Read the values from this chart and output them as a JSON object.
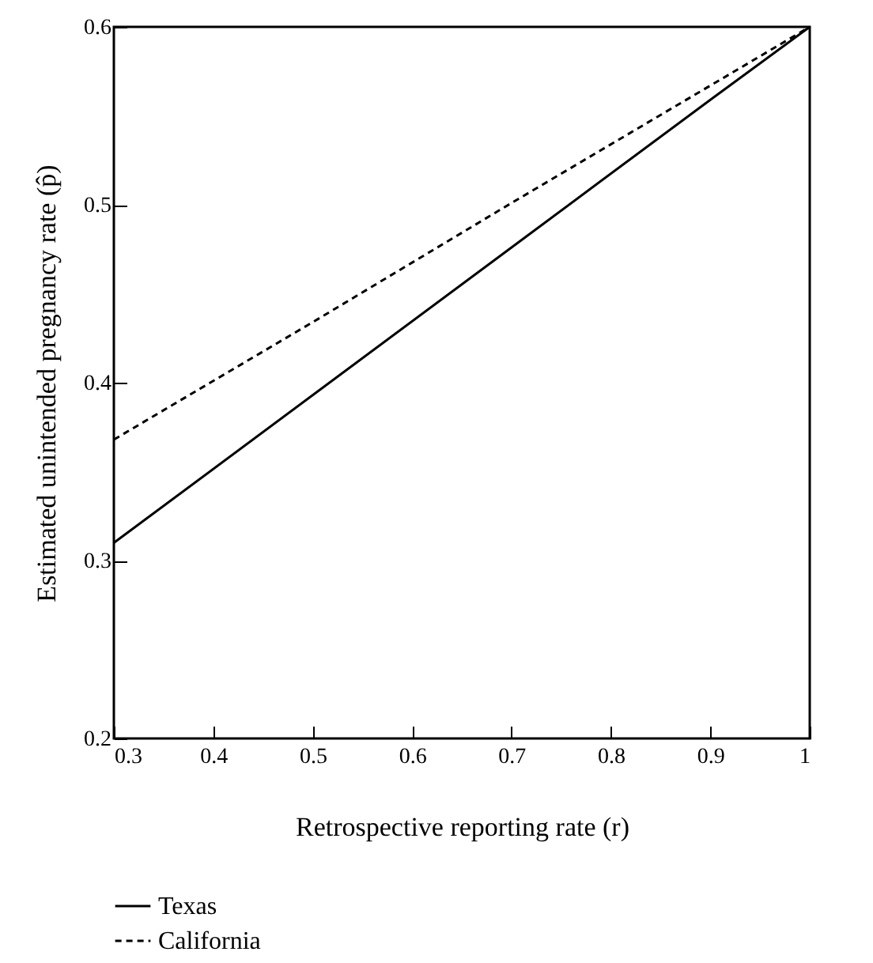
{
  "chart_data": {
    "type": "line",
    "xlabel": "Retrospective reporting rate (r)",
    "ylabel": "Estimated unintended pregnancy rate (p̂)",
    "x": [
      0.3,
      0.5,
      0.7,
      0.9,
      1
    ],
    "series": [
      {
        "name": "Texas",
        "color": "#000000",
        "line_style": "solid",
        "values": [
          0.31,
          0.393,
          0.476,
          0.559,
          0.6
        ]
      },
      {
        "name": "California",
        "color": "#000000",
        "line_style": "dashed",
        "values": [
          0.368,
          0.434,
          0.501,
          0.567,
          0.6
        ]
      }
    ],
    "xlim": [
      0.3,
      1
    ],
    "xticks": [
      0.3,
      0.4,
      0.5,
      0.6,
      0.7,
      0.8,
      0.9,
      1
    ],
    "ylim": [
      0.2,
      0.6
    ],
    "yticks": [
      0.2,
      0.3,
      0.4,
      0.5,
      0.6
    ],
    "grid": false,
    "legend": "bottom left",
    "marker": "none"
  }
}
